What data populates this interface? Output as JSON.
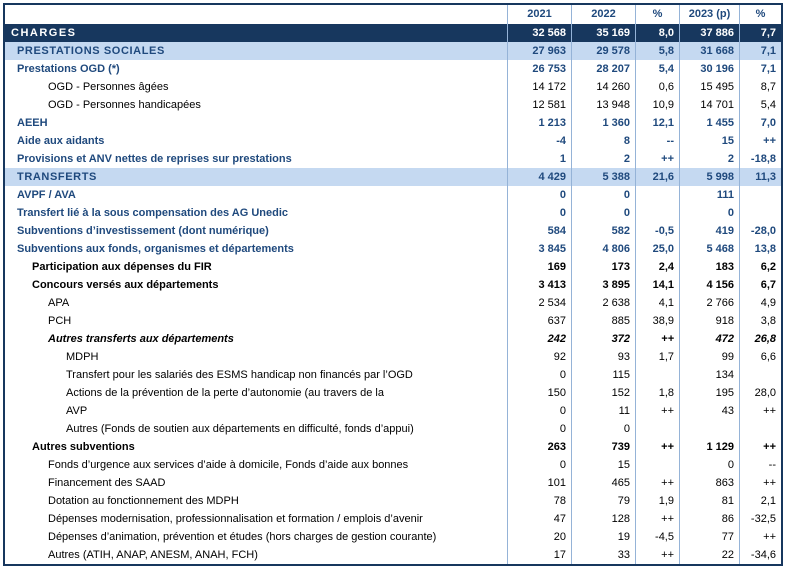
{
  "colors": {
    "dark_navy_row": "#17375E",
    "light_blue_row": "#C5D9F1",
    "blue_text": "#1F497D",
    "grid_border": "#95B3D7"
  },
  "table": {
    "columns": [
      "2021",
      "2022",
      "%",
      "2023 (p)",
      "%"
    ],
    "rows": [
      {
        "label": "CHARGES",
        "values": [
          "32 568",
          "35 169",
          "8,0",
          "37 886",
          "7,7"
        ],
        "style": "total-dark",
        "indent": 0
      },
      {
        "label": "PRESTATIONS SOCIALES",
        "values": [
          "27 963",
          "29 578",
          "5,8",
          "31 668",
          "7,1"
        ],
        "style": "section-light",
        "indent": 1
      },
      {
        "label": "Prestations OGD (*)",
        "values": [
          "26 753",
          "28 207",
          "5,4",
          "30 196",
          "7,1"
        ],
        "style": "blue-bold",
        "indent": 1
      },
      {
        "label": "OGD - Personnes âgées",
        "values": [
          "14 172",
          "14 260",
          "0,6",
          "15 495",
          "8,7"
        ],
        "style": "plain",
        "indent": 3
      },
      {
        "label": "OGD - Personnes handicapées",
        "values": [
          "12 581",
          "13 948",
          "10,9",
          "14 701",
          "5,4"
        ],
        "style": "plain",
        "indent": 3
      },
      {
        "label": "AEEH",
        "values": [
          "1 213",
          "1 360",
          "12,1",
          "1 455",
          "7,0"
        ],
        "style": "blue-bold",
        "indent": 1
      },
      {
        "label": "Aide aux aidants",
        "values": [
          "-4",
          "8",
          "--",
          "15",
          "++"
        ],
        "style": "blue-bold",
        "indent": 1
      },
      {
        "label": "Provisions et ANV nettes de reprises sur prestations",
        "values": [
          "1",
          "2",
          "++",
          "2",
          "-18,8"
        ],
        "style": "blue-bold",
        "indent": 1
      },
      {
        "label": "TRANSFERTS",
        "values": [
          "4 429",
          "5 388",
          "21,6",
          "5 998",
          "11,3"
        ],
        "style": "section-light",
        "indent": 1
      },
      {
        "label": "AVPF / AVA",
        "values": [
          "0",
          "0",
          "",
          "111",
          ""
        ],
        "style": "blue-bold",
        "indent": 1
      },
      {
        "label": "Transfert lié à la sous compensation des AG Unedic",
        "values": [
          "0",
          "0",
          "",
          "0",
          ""
        ],
        "style": "blue-bold",
        "indent": 1
      },
      {
        "label": "Subventions d’investissement (dont numérique)",
        "values": [
          "584",
          "582",
          "-0,5",
          "419",
          "-28,0"
        ],
        "style": "blue-bold",
        "indent": 1
      },
      {
        "label": "Subventions aux fonds, organismes et départements",
        "values": [
          "3 845",
          "4 806",
          "25,0",
          "5 468",
          "13,8"
        ],
        "style": "blue-bold",
        "indent": 1
      },
      {
        "label": "Participation aux dépenses du FIR",
        "values": [
          "169",
          "173",
          "2,4",
          "183",
          "6,2"
        ],
        "style": "black-bold",
        "indent": 2
      },
      {
        "label": "Concours versés aux départements",
        "values": [
          "3 413",
          "3 895",
          "14,1",
          "4 156",
          "6,7"
        ],
        "style": "black-bold",
        "indent": 2
      },
      {
        "label": "APA",
        "values": [
          "2 534",
          "2 638",
          "4,1",
          "2 766",
          "4,9"
        ],
        "style": "plain",
        "indent": 3
      },
      {
        "label": "PCH",
        "values": [
          "637",
          "885",
          "38,9",
          "918",
          "3,8"
        ],
        "style": "plain",
        "indent": 3
      },
      {
        "label": "Autres transferts aux départements",
        "values": [
          "242",
          "372",
          "++",
          "472",
          "26,8"
        ],
        "style": "italic-bold",
        "indent": 3
      },
      {
        "label": "MDPH",
        "values": [
          "92",
          "93",
          "1,7",
          "99",
          "6,6"
        ],
        "style": "plain",
        "indent": 4
      },
      {
        "label": "Transfert pour les salariés des ESMS handicap non financés par l’OGD",
        "values": [
          "0",
          "115",
          "",
          "134",
          ""
        ],
        "style": "plain",
        "indent": 4
      },
      {
        "label": "Actions de la prévention de la perte d’autonomie (au travers de la",
        "values": [
          "150",
          "152",
          "1,8",
          "195",
          "28,0"
        ],
        "style": "plain",
        "indent": 4
      },
      {
        "label": "AVP",
        "values": [
          "0",
          "11",
          "++",
          "43",
          "++"
        ],
        "style": "plain",
        "indent": 4
      },
      {
        "label": "Autres (Fonds de soutien aux départements en difficulté, fonds d’appui)",
        "values": [
          "0",
          "0",
          "",
          "",
          ""
        ],
        "style": "plain",
        "indent": 4
      },
      {
        "label": "Autres subventions",
        "values": [
          "263",
          "739",
          "++",
          "1 129",
          "++"
        ],
        "style": "black-bold",
        "indent": 2
      },
      {
        "label": "Fonds d’urgence aux services d’aide à domicile, Fonds d’aide aux bonnes",
        "values": [
          "0",
          "15",
          "",
          "0",
          "--"
        ],
        "style": "plain",
        "indent": 3
      },
      {
        "label": "Financement des SAAD",
        "values": [
          "101",
          "465",
          "++",
          "863",
          "++"
        ],
        "style": "plain",
        "indent": 3
      },
      {
        "label": "Dotation au fonctionnement des MDPH",
        "values": [
          "78",
          "79",
          "1,9",
          "81",
          "2,1"
        ],
        "style": "plain",
        "indent": 3
      },
      {
        "label": "Dépenses modernisation, professionnalisation et formation / emplois d’avenir",
        "values": [
          "47",
          "128",
          "++",
          "86",
          "-32,5"
        ],
        "style": "plain",
        "indent": 3
      },
      {
        "label": "Dépenses d’animation, prévention et études (hors charges de gestion courante)",
        "values": [
          "20",
          "19",
          "-4,5",
          "77",
          "++"
        ],
        "style": "plain",
        "indent": 3
      },
      {
        "label": "Autres (ATIH, ANAP, ANESM, ANAH, FCH)",
        "values": [
          "17",
          "33",
          "++",
          "22",
          "-34,6"
        ],
        "style": "plain",
        "indent": 3
      }
    ]
  }
}
